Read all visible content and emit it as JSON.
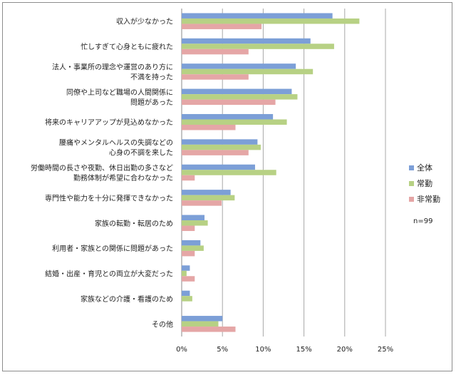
{
  "chart_data": {
    "type": "bar",
    "orientation": "horizontal",
    "categories": [
      [
        "収入が少なかった"
      ],
      [
        "忙しすぎて心身ともに疲れた"
      ],
      [
        "法人・事業所の理念や運営のあり方に",
        "不満を持った"
      ],
      [
        "同僚や上司など職場の人間関係に",
        "問題があった"
      ],
      [
        "将来のキャリアアップが見込めなかった"
      ],
      [
        "腰痛やメンタルヘルスの失調などの",
        "心身の不調を来した"
      ],
      [
        "労働時間の長さや夜勤、休日出勤の多さなど",
        "勤務体制が希望に合わなかった"
      ],
      [
        "専門性や能力を十分に発揮できなかった"
      ],
      [
        "家族の転勤・転居のため"
      ],
      [
        "利用者・家族との関係に問題があった"
      ],
      [
        "結婚・出産・育児との両立が大変だった"
      ],
      [
        "家族などの介護・看護のため"
      ],
      [
        "その他"
      ]
    ],
    "series": [
      {
        "name": "全体",
        "color": "#7c9fd7",
        "values": [
          18.5,
          15.8,
          14.0,
          13.5,
          11.2,
          9.3,
          9.0,
          6.0,
          2.8,
          2.3,
          1.0,
          1.0,
          5.0
        ]
      },
      {
        "name": "常勤",
        "color": "#b7d184",
        "values": [
          21.8,
          18.7,
          16.1,
          14.2,
          12.9,
          9.7,
          11.6,
          6.5,
          3.2,
          2.7,
          0.6,
          1.3,
          4.5
        ]
      },
      {
        "name": "非常勤",
        "color": "#e5a6a6",
        "values": [
          9.8,
          8.2,
          8.2,
          11.5,
          6.6,
          8.2,
          1.6,
          4.9,
          1.6,
          1.6,
          1.6,
          0.0,
          6.6
        ]
      }
    ],
    "xlim": [
      0,
      25
    ],
    "xticks": [
      "0%",
      "5%",
      "10%",
      "15%",
      "20%",
      "25%"
    ],
    "xtick_values": [
      0,
      5,
      10,
      15,
      20,
      25
    ],
    "grid": true,
    "legend_position": "right",
    "note": "n=99"
  }
}
